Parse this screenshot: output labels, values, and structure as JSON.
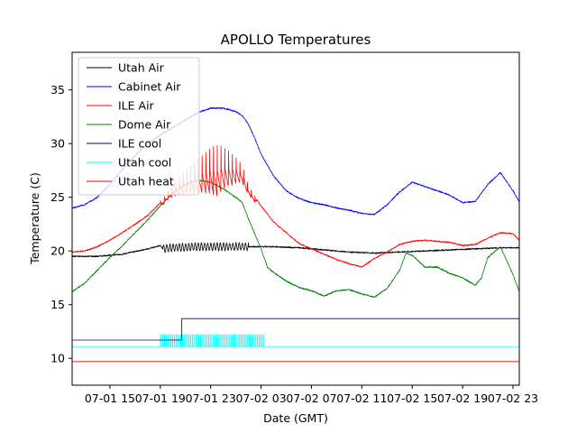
{
  "chart_data": {
    "type": "line",
    "title": "APOLLO Temperatures",
    "xlabel": "Date (GMT)",
    "ylabel": "Temperature (C)",
    "x_units": "hours since 07-01 00:00 GMT",
    "xlim": [
      12,
      47.5
    ],
    "ylim": [
      7.5,
      38.5
    ],
    "x_ticks": [
      {
        "value": 15,
        "label": "07-01 15"
      },
      {
        "value": 19,
        "label": "07-01 19"
      },
      {
        "value": 23,
        "label": "07-01 23"
      },
      {
        "value": 27,
        "label": "07-02 03"
      },
      {
        "value": 31,
        "label": "07-02 07"
      },
      {
        "value": 35,
        "label": "07-02 11"
      },
      {
        "value": 39,
        "label": "07-02 15"
      },
      {
        "value": 43,
        "label": "07-02 19"
      },
      {
        "value": 47,
        "label": "07-02 23"
      }
    ],
    "y_ticks": [
      {
        "value": 10,
        "label": "10"
      },
      {
        "value": 15,
        "label": "15"
      },
      {
        "value": 20,
        "label": "20"
      },
      {
        "value": 25,
        "label": "25"
      },
      {
        "value": 30,
        "label": "30"
      },
      {
        "value": 35,
        "label": "35"
      }
    ],
    "legend_position": "top-left",
    "series": [
      {
        "name": "Utah Air",
        "color": "#000000",
        "x": [
          12,
          14,
          16,
          18,
          19,
          19.2,
          20,
          22,
          24,
          26,
          27,
          28,
          30,
          32,
          34,
          36,
          38,
          40,
          42,
          44,
          46,
          47.5
        ],
        "y": [
          19.5,
          19.5,
          19.7,
          20.2,
          20.5,
          20.2,
          20.3,
          20.4,
          20.4,
          20.4,
          20.4,
          20.4,
          20.3,
          20.1,
          19.9,
          19.8,
          19.9,
          20.0,
          20.1,
          20.2,
          20.3,
          20.3
        ],
        "oscillation": {
          "start": 19.2,
          "end": 26.0,
          "amplitude": 0.35,
          "period": 0.25
        }
      },
      {
        "name": "Cabinet Air",
        "color": "#0000ff",
        "x": [
          12,
          13,
          14,
          15,
          16,
          17,
          18,
          19,
          20,
          21,
          22,
          23,
          24,
          25,
          25.5,
          26,
          26.5,
          27,
          28,
          29,
          30,
          31,
          32,
          33,
          34,
          35,
          36,
          37,
          38,
          39,
          40,
          41,
          42,
          43,
          44,
          45,
          46,
          47,
          47.5
        ],
        "y": [
          24.0,
          24.3,
          25.0,
          26.2,
          27.6,
          28.9,
          30.0,
          30.8,
          31.5,
          32.2,
          32.9,
          33.3,
          33.3,
          33.0,
          32.6,
          31.8,
          30.5,
          29.0,
          27.0,
          25.6,
          24.9,
          24.5,
          24.3,
          24.0,
          23.8,
          23.5,
          23.4,
          24.3,
          25.5,
          26.4,
          26.0,
          25.6,
          25.2,
          24.5,
          24.6,
          26.2,
          27.3,
          25.6,
          24.6
        ]
      },
      {
        "name": "ILE Air",
        "color": "#ff0000",
        "x": [
          12,
          13,
          14,
          15,
          16,
          17,
          18,
          19,
          20,
          21,
          22,
          23,
          24,
          25,
          25.5,
          26,
          27,
          28,
          29,
          30,
          31,
          32,
          33,
          34,
          35,
          36,
          37,
          38,
          39,
          40,
          41,
          42,
          43,
          44,
          45,
          46,
          47,
          47.5
        ],
        "y": [
          19.9,
          20.0,
          20.4,
          21.0,
          21.7,
          22.5,
          23.3,
          24.5,
          25.8,
          26.8,
          27.6,
          28.3,
          28.5,
          28.0,
          27.5,
          25.8,
          24.2,
          22.7,
          21.7,
          20.7,
          20.2,
          19.7,
          19.2,
          18.8,
          18.5,
          19.3,
          19.9,
          20.6,
          20.9,
          21.0,
          20.9,
          20.8,
          20.5,
          20.6,
          21.2,
          21.7,
          21.6,
          21.0
        ]
      },
      {
        "name": "Dome Air",
        "color": "#008000",
        "x": [
          12,
          13,
          14,
          15,
          16,
          17,
          18,
          19,
          20,
          21,
          22,
          23,
          24,
          25,
          25.5,
          26,
          27,
          27.5,
          28,
          29,
          30,
          31,
          32,
          33,
          34,
          35,
          36,
          37,
          38,
          38.5,
          39,
          40,
          41,
          42,
          43,
          44,
          44.5,
          45,
          46,
          47,
          47.5
        ],
        "y": [
          16.2,
          17.0,
          18.2,
          19.4,
          20.5,
          21.7,
          22.9,
          24.2,
          25.4,
          26.2,
          26.6,
          26.4,
          25.8,
          25.0,
          24.5,
          23.0,
          20.2,
          18.5,
          18.0,
          17.2,
          16.6,
          16.3,
          15.8,
          16.3,
          16.4,
          16.0,
          15.7,
          16.5,
          18.2,
          19.8,
          19.6,
          18.5,
          18.5,
          17.9,
          17.5,
          16.8,
          17.5,
          19.4,
          20.4,
          17.8,
          16.2
        ]
      },
      {
        "name": "ILE cool",
        "color": "#00008b",
        "x": [
          12,
          20.7,
          20.7,
          47.5
        ],
        "y": [
          11.7,
          11.7,
          13.7,
          13.7
        ]
      },
      {
        "name": "Utah cool",
        "color": "#00ffff",
        "x": [
          12,
          47.5
        ],
        "y": [
          11.1,
          11.1
        ],
        "pulses": {
          "start": 19.0,
          "end": 27.2,
          "spacing": 0.16,
          "high": 12.2
        }
      },
      {
        "name": "Utah heat",
        "color": "#ff0000",
        "x": [
          12,
          47.5
        ],
        "y": [
          9.7,
          9.7
        ]
      }
    ],
    "ile_air_oscillation": {
      "start": 19.0,
      "end": 26.6,
      "period": 0.3,
      "amplitude_peak": 2.6
    }
  }
}
